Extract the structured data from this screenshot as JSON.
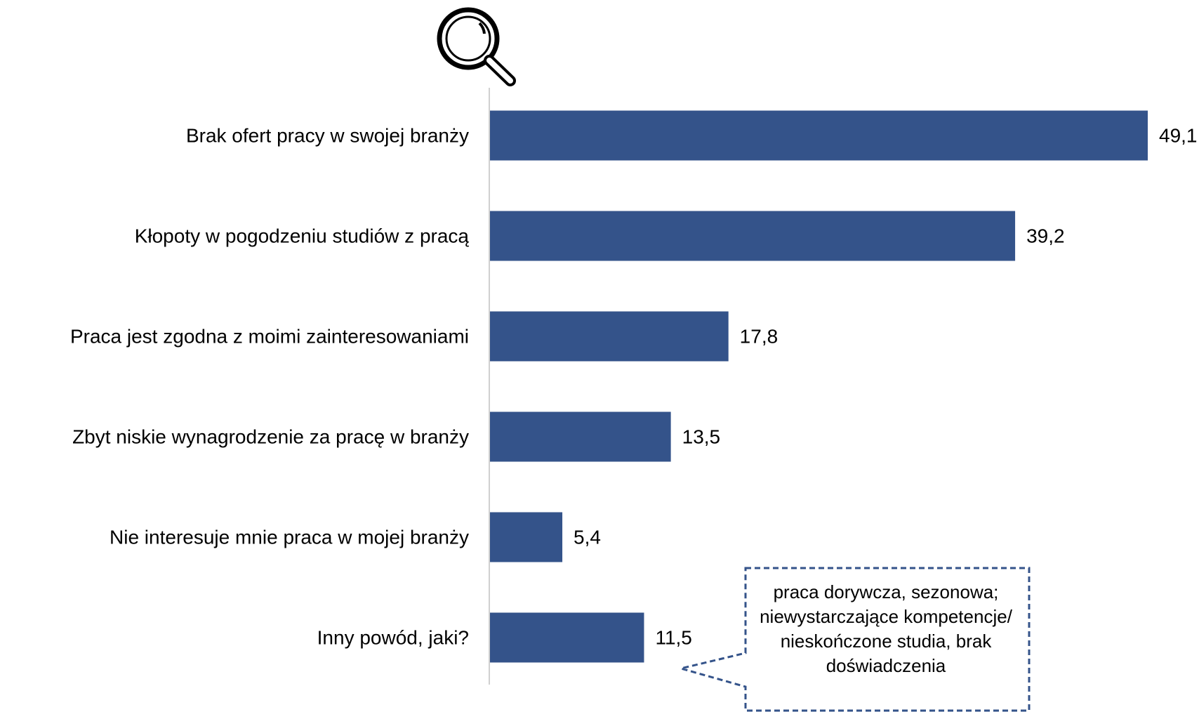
{
  "chart_data": {
    "type": "bar",
    "orientation": "horizontal",
    "categories": [
      "Brak ofert pracy w swojej branży",
      "Kłopoty w pogodzeniu studiów z pracą",
      "Praca jest zgodna z moimi zainteresowaniami",
      "Zbyt niskie wynagrodzenie za pracę w branży",
      "Nie interesuje mnie praca w mojej branży",
      "Inny powód, jaki?"
    ],
    "values": [
      49.1,
      39.2,
      17.8,
      13.5,
      5.4,
      11.5
    ],
    "value_labels": [
      "49,1",
      "39,2",
      "17,8",
      "13,5",
      "5,4",
      "11,5"
    ],
    "color": "#34538a",
    "annotation": "praca dorywcza, sezonowa; niewystarczające kompetencje/ nieskończone studia, brak doświadczenia"
  }
}
